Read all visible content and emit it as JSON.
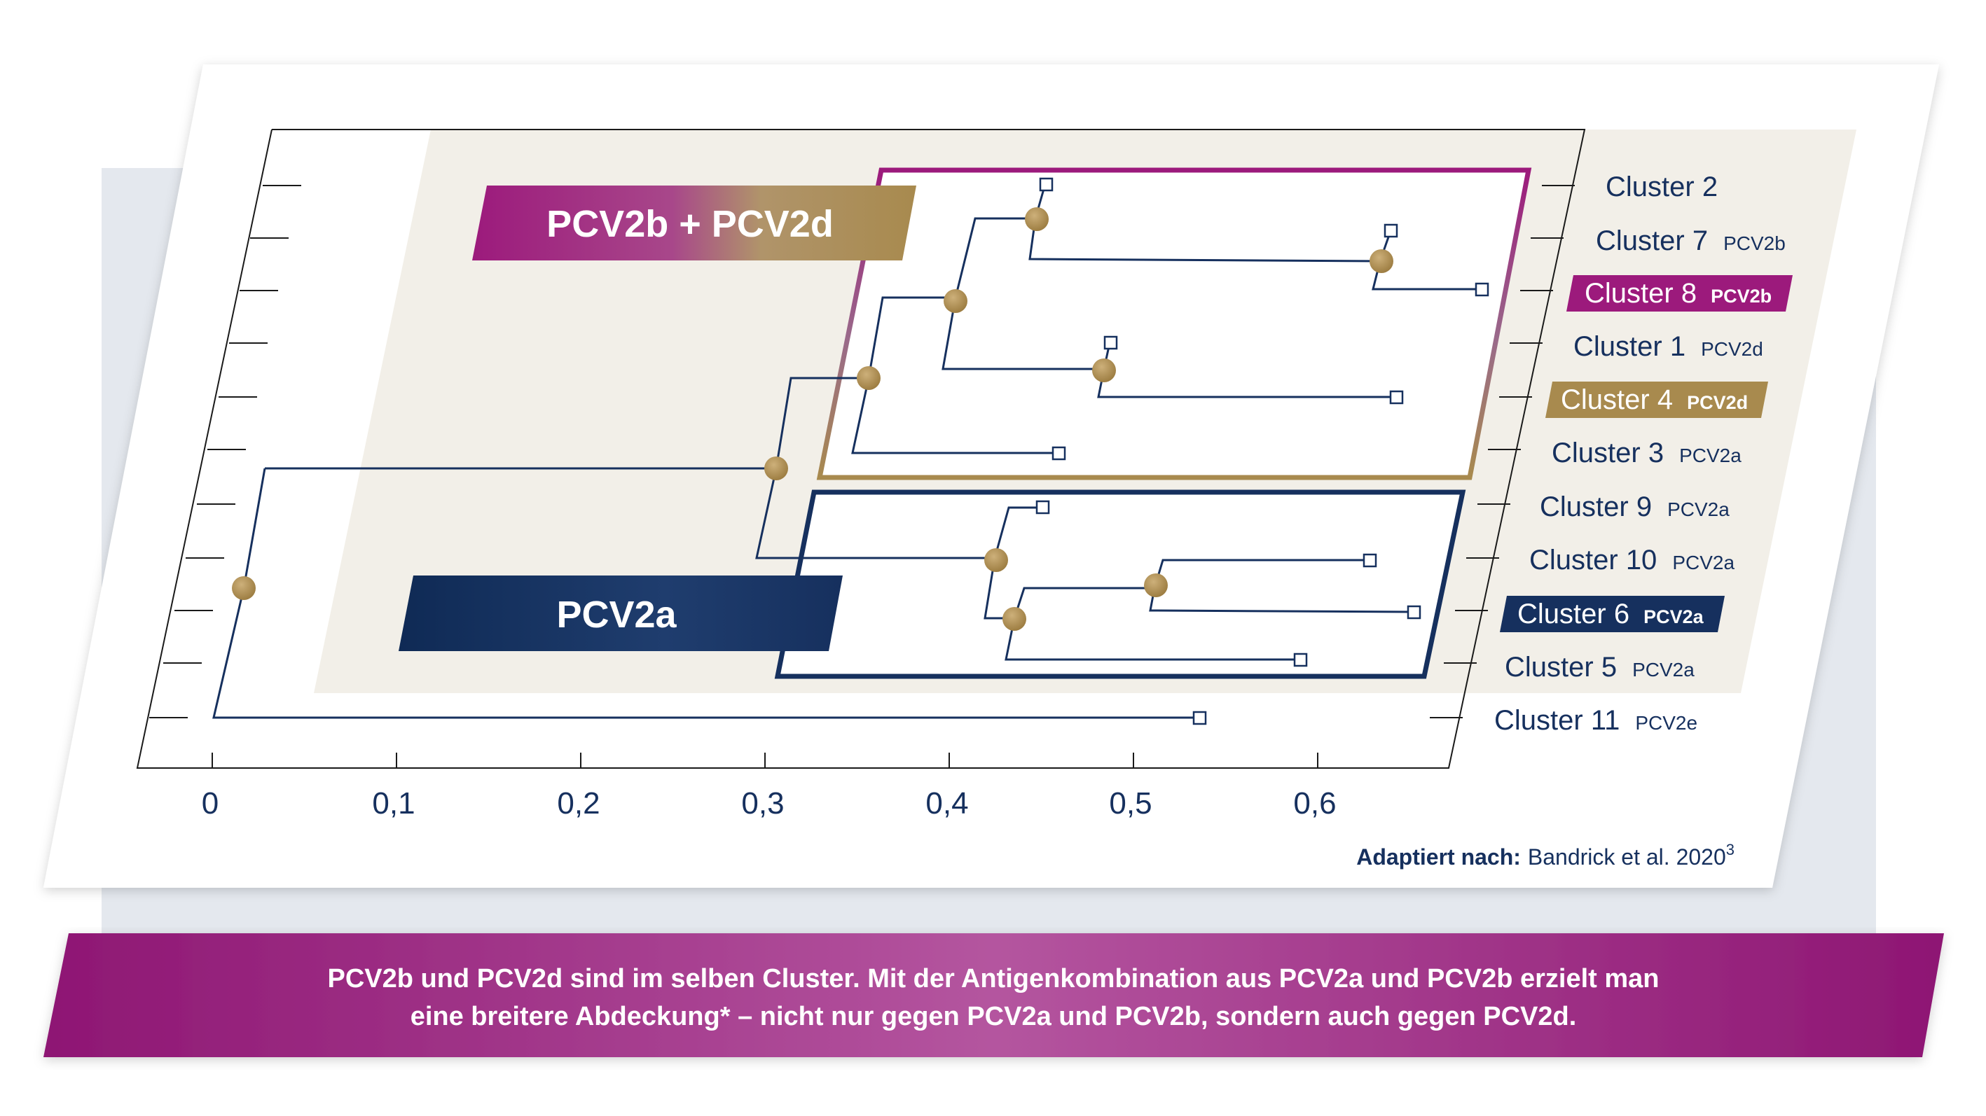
{
  "axis": {
    "ticks": [
      "0",
      "0,1",
      "0,2",
      "0,3",
      "0,4",
      "0,5",
      "0,6"
    ]
  },
  "groups": {
    "top_label": "PCV2b + PCV2d",
    "bottom_label": "PCV2a"
  },
  "clusters": [
    {
      "name": "Cluster 2",
      "sub": "",
      "highlight": "none"
    },
    {
      "name": "Cluster 7",
      "sub": "PCV2b",
      "highlight": "none"
    },
    {
      "name": "Cluster 8",
      "sub": "PCV2b",
      "highlight": "magenta"
    },
    {
      "name": "Cluster 1",
      "sub": "PCV2d",
      "highlight": "none"
    },
    {
      "name": "Cluster 4",
      "sub": "PCV2d",
      "highlight": "gold"
    },
    {
      "name": "Cluster 3",
      "sub": "PCV2a",
      "highlight": "none"
    },
    {
      "name": "Cluster 9",
      "sub": "PCV2a",
      "highlight": "none"
    },
    {
      "name": "Cluster 10",
      "sub": "PCV2a",
      "highlight": "none"
    },
    {
      "name": "Cluster 6",
      "sub": "PCV2a",
      "highlight": "navy"
    },
    {
      "name": "Cluster 5",
      "sub": "PCV2a",
      "highlight": "none"
    },
    {
      "name": "Cluster 11",
      "sub": "PCV2e",
      "highlight": "none"
    }
  ],
  "source": {
    "prefix": "Adaptiert nach:",
    "text": "Bandrick et al. 2020",
    "sup": "3"
  },
  "caption": {
    "line1": "PCV2b und PCV2d sind im selben Cluster. Mit der Antigenkombination aus PCV2a und PCV2b erzielt man",
    "line2": "eine breitere Abdeckung* – nicht nur gegen PCV2a und PCV2b, sondern auch gegen PCV2d."
  },
  "colors": {
    "navy": "#16305e",
    "magenta": "#9c1a7c",
    "gold": "#a88a4e",
    "node": "#b08f4e",
    "panel_bg": "#f2efe8",
    "back_panel": "#e4e8ee"
  }
}
